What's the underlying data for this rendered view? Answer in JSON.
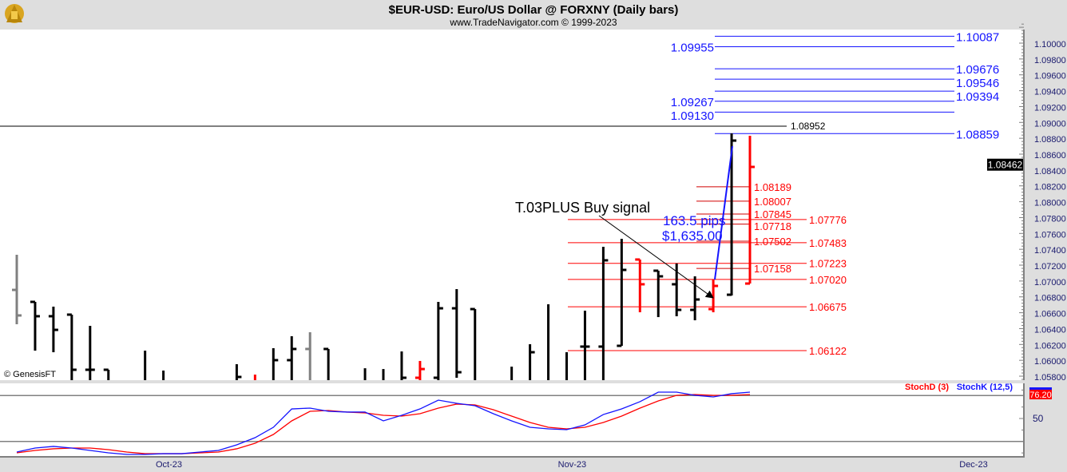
{
  "header": {
    "title": "$EUR-USD:  Euro/US Dollar @ FORXNY  (Daily bars)",
    "subtitle": "www.TradeNavigator.com © 1999-2023"
  },
  "watermark": "© GenesisFT",
  "colors": {
    "up": "#000000",
    "down": "#ff0000",
    "neutral": "#808080",
    "blue": "#1414ff",
    "red": "#ff0000"
  },
  "chart_data": [
    {
      "type": "ohlc",
      "title": "$EUR-USD: Euro/US Dollar @ FORXNY (Daily bars)",
      "ylim": [
        1.058,
        1.1025
      ],
      "y_ticks": [
        "1.05800",
        "1.06000",
        "1.06200",
        "1.06400",
        "1.06600",
        "1.06800",
        "1.07000",
        "1.07200",
        "1.07400",
        "1.07600",
        "1.07800",
        "1.08000",
        "1.08200",
        "1.08400",
        "1.08600",
        "1.08800",
        "1.09000",
        "1.09200",
        "1.09400",
        "1.09600",
        "1.09800",
        "1.10000"
      ],
      "last_price_label": "1.08462",
      "last_price": 1.08462,
      "x_labels": [
        {
          "label": "Oct-23",
          "slot": 8.3
        },
        {
          "label": "Nov-23",
          "slot": 30.3
        },
        {
          "label": "Dec-23",
          "slot": 52.2
        }
      ],
      "bars": [
        {
          "slot": 0,
          "o": 1.06888,
          "h": 1.07331,
          "l": 1.06455,
          "c": 1.06566,
          "color": "neutral"
        },
        {
          "slot": 1,
          "o": 1.06737,
          "h": 1.06737,
          "l": 1.06122,
          "c": 1.06556,
          "color": "up"
        },
        {
          "slot": 2,
          "o": 1.06556,
          "h": 1.06677,
          "l": 1.06102,
          "c": 1.06384,
          "color": "up"
        },
        {
          "slot": 3,
          "o": 1.06576,
          "h": 1.06576,
          "l": 1.056,
          "c": 1.05881,
          "color": "up"
        },
        {
          "slot": 4,
          "o": 1.05881,
          "h": 1.06435,
          "l": 1.056,
          "c": 1.05881,
          "color": "up"
        },
        {
          "slot": 5,
          "o": 1.05881,
          "h": 1.05881,
          "l": 1.056,
          "c": null,
          "color": "up"
        },
        {
          "slot": 7,
          "o": null,
          "h": 1.06122,
          "l": 1.056,
          "c": null,
          "color": "up"
        },
        {
          "slot": 8,
          "o": null,
          "h": 1.05871,
          "l": 1.056,
          "c": null,
          "color": "up"
        },
        {
          "slot": 12,
          "o": null,
          "h": 1.05951,
          "l": 1.056,
          "c": 1.0579,
          "color": "up"
        },
        {
          "slot": 13,
          "o": null,
          "h": 1.0582,
          "l": 1.056,
          "c": null,
          "color": "down"
        },
        {
          "slot": 14,
          "o": null,
          "h": 1.06153,
          "l": 1.056,
          "c": 1.06002,
          "color": "up"
        },
        {
          "slot": 15,
          "o": 1.06002,
          "h": 1.06304,
          "l": 1.056,
          "c": 1.06143,
          "color": "up"
        },
        {
          "slot": 16,
          "o": 1.06143,
          "h": 1.06354,
          "l": 1.056,
          "c": null,
          "color": "neutral"
        },
        {
          "slot": 17,
          "o": 1.06143,
          "h": 1.06143,
          "l": 1.056,
          "c": null,
          "color": "up"
        },
        {
          "slot": 19,
          "o": null,
          "h": 1.059,
          "l": 1.056,
          "c": null,
          "color": "up"
        },
        {
          "slot": 20,
          "o": null,
          "h": 1.0589,
          "l": 1.056,
          "c": null,
          "color": "up"
        },
        {
          "slot": 21,
          "o": null,
          "h": 1.06112,
          "l": 1.056,
          "c": 1.0578,
          "color": "up"
        },
        {
          "slot": 22,
          "o": 1.0578,
          "h": 1.05992,
          "l": 1.056,
          "c": 1.0589,
          "color": "down"
        },
        {
          "slot": 23,
          "o": 1.0578,
          "h": 1.06737,
          "l": 1.056,
          "c": 1.06656,
          "color": "up"
        },
        {
          "slot": 24,
          "o": 1.06656,
          "h": 1.06898,
          "l": 1.0578,
          "c": 1.0585,
          "color": "up"
        },
        {
          "slot": 25,
          "o": 1.06646,
          "h": 1.06646,
          "l": 1.056,
          "c": null,
          "color": "up"
        },
        {
          "slot": 27,
          "o": null,
          "h": 1.0592,
          "l": 1.056,
          "c": null,
          "color": "up"
        },
        {
          "slot": 28,
          "o": null,
          "h": 1.06203,
          "l": 1.056,
          "c": 1.06102,
          "color": "up"
        },
        {
          "slot": 29,
          "o": null,
          "h": 1.06707,
          "l": 1.056,
          "c": null,
          "color": "up"
        },
        {
          "slot": 30,
          "o": null,
          "h": 1.06102,
          "l": 1.056,
          "c": null,
          "color": "up"
        },
        {
          "slot": 31,
          "o": 1.06173,
          "h": 1.06626,
          "l": 1.056,
          "c": 1.06173,
          "color": "up"
        },
        {
          "slot": 32,
          "o": 1.06173,
          "h": 1.07432,
          "l": 1.056,
          "c": 1.07261,
          "color": "up"
        },
        {
          "slot": 33,
          "o": 1.06183,
          "h": 1.07532,
          "l": 1.06183,
          "c": 1.0714,
          "color": "up"
        },
        {
          "slot": 34,
          "o": 1.07271,
          "h": 1.07271,
          "l": 1.06606,
          "c": 1.06959,
          "color": "down"
        },
        {
          "slot": 35,
          "o": 1.0713,
          "h": 1.0713,
          "l": 1.06545,
          "c": 1.07059,
          "color": "up"
        },
        {
          "slot": 36,
          "o": 1.06959,
          "h": 1.07221,
          "l": 1.06555,
          "c": 1.06636,
          "color": "up"
        },
        {
          "slot": 37,
          "o": 1.06636,
          "h": 1.07059,
          "l": 1.06505,
          "c": 1.06767,
          "color": "up"
        },
        {
          "slot": 38,
          "o": 1.06646,
          "h": 1.07019,
          "l": 1.06606,
          "c": 1.06938,
          "color": "down"
        },
        {
          "slot": 39,
          "o": 1.06827,
          "h": 1.08862,
          "l": 1.06817,
          "c": 1.08771,
          "color": "up"
        },
        {
          "slot": 40,
          "o": 1.06968,
          "h": 1.08832,
          "l": 1.06968,
          "c": 1.08439,
          "color": "down"
        }
      ],
      "levels_blue": [
        {
          "label": "1.10087",
          "value": 1.10087,
          "side": "right"
        },
        {
          "label": "1.09955",
          "value": 1.09955,
          "side": "left"
        },
        {
          "label": "1.09676",
          "value": 1.09676,
          "side": "right"
        },
        {
          "label": "1.09546",
          "value": 1.09546,
          "side": "right"
        },
        {
          "label": "1.09394",
          "value": 1.09394,
          "side": "right"
        },
        {
          "label": "1.09267",
          "value": 1.09267,
          "side": "left"
        },
        {
          "label": "1.09130",
          "value": 1.0913,
          "side": "left"
        },
        {
          "label": "1.08859",
          "value": 1.08859,
          "side": "right"
        }
      ],
      "level_black": {
        "label": "1.08952",
        "value": 1.08952
      },
      "levels_red_long": [
        {
          "label": "1.07776",
          "value": 1.07776
        },
        {
          "label": "1.07483",
          "value": 1.07483
        },
        {
          "label": "1.07223",
          "value": 1.07223
        },
        {
          "label": "1.07020",
          "value": 1.0702
        },
        {
          "label": "1.06675",
          "value": 1.06675
        },
        {
          "label": "1.06122",
          "value": 1.06122
        }
      ],
      "levels_red_short": [
        {
          "label": "1.08189",
          "value": 1.08189
        },
        {
          "label": "1.08007",
          "value": 1.08007
        },
        {
          "label": "1.07845",
          "value": 1.07845
        },
        {
          "label": "1.07718",
          "value": 1.07718
        },
        {
          "label": "1.07502",
          "value": 1.07502
        },
        {
          "label": "1.07158",
          "value": 1.07158
        }
      ],
      "annotations": {
        "signal_text": "T.03PLUS Buy signal",
        "pips_text": "163.5 pips",
        "dollars_text": "$1,635.00"
      }
    },
    {
      "type": "line",
      "title": "Stochastic",
      "ylim": [
        0,
        100
      ],
      "ref_lines": [
        75,
        25
      ],
      "y_tick_label": "50",
      "last_value_label": "76.20",
      "series": [
        {
          "name": "StochD (3)",
          "color": "#ff0000",
          "values": [
            12.6,
            15.2,
            17,
            17.8,
            17.8,
            16.1,
            13.5,
            11.7,
            11.7,
            11.7,
            12.6,
            13.5,
            17,
            23,
            32.6,
            47.4,
            57.8,
            58.7,
            57,
            56.1,
            53.5,
            52.6,
            55.2,
            61.3,
            65.7,
            64.8,
            59.6,
            52.6,
            45.7,
            40.4,
            38.7,
            40.4,
            45.7,
            52.6,
            61.3,
            69.1,
            75.2,
            76.1,
            75.2,
            75.2,
            76.1
          ]
        },
        {
          "name": "StochK (12,5)",
          "color": "#1414ff",
          "values": [
            13.5,
            17.8,
            19.6,
            17.8,
            15.2,
            12.6,
            10.9,
            10.9,
            11.7,
            11.7,
            13.5,
            15.2,
            21.3,
            29.1,
            40.4,
            60.4,
            61.3,
            57.8,
            57,
            57,
            47.4,
            53.5,
            60.4,
            70,
            66.5,
            63.9,
            55.2,
            47.4,
            40.4,
            38.7,
            37.8,
            43,
            54.3,
            60.4,
            68.3,
            78.7,
            78.7,
            75.2,
            73.5,
            77,
            78.7
          ]
        }
      ]
    }
  ]
}
